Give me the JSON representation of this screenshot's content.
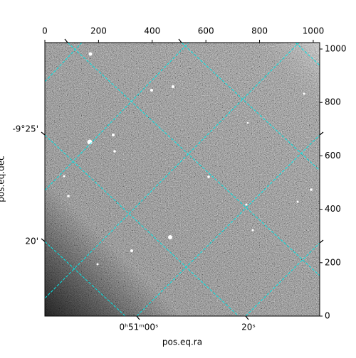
{
  "chart_data": {
    "type": "image",
    "xlabel": "pos.eq.ra",
    "ylabel": "pos.eq.dec",
    "xlim": [
      0,
      1024
    ],
    "xticks": [
      0,
      200,
      400,
      600,
      800,
      1000
    ],
    "ylim": [
      0,
      1024
    ],
    "yticks": [
      0,
      200,
      400,
      600,
      800,
      1000
    ],
    "ra_labels": [
      "0ʰ51ᵐ00ˢ",
      "20ˢ"
    ],
    "dec_labels": [
      "-9°25'",
      "20'"
    ],
    "grid_color": "#00e5e5"
  }
}
